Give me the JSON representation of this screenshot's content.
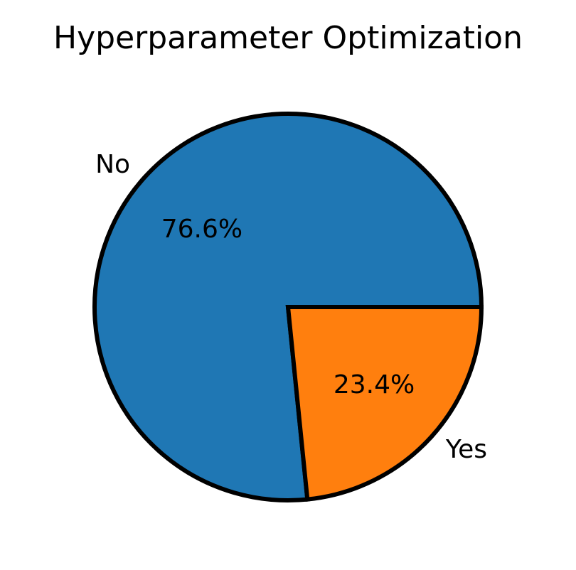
{
  "chart_data": {
    "type": "pie",
    "title": "Hyperparameter Optimization",
    "slices": [
      {
        "label": "No",
        "value": 76.6,
        "pct_label": "76.6%",
        "color": "#1f77b4"
      },
      {
        "label": "Yes",
        "value": 23.4,
        "pct_label": "23.4%",
        "color": "#ff7f0e"
      }
    ],
    "start_angle_deg": 0,
    "direction": "counterclockwise",
    "edge_color": "#000000",
    "legend": "none"
  }
}
